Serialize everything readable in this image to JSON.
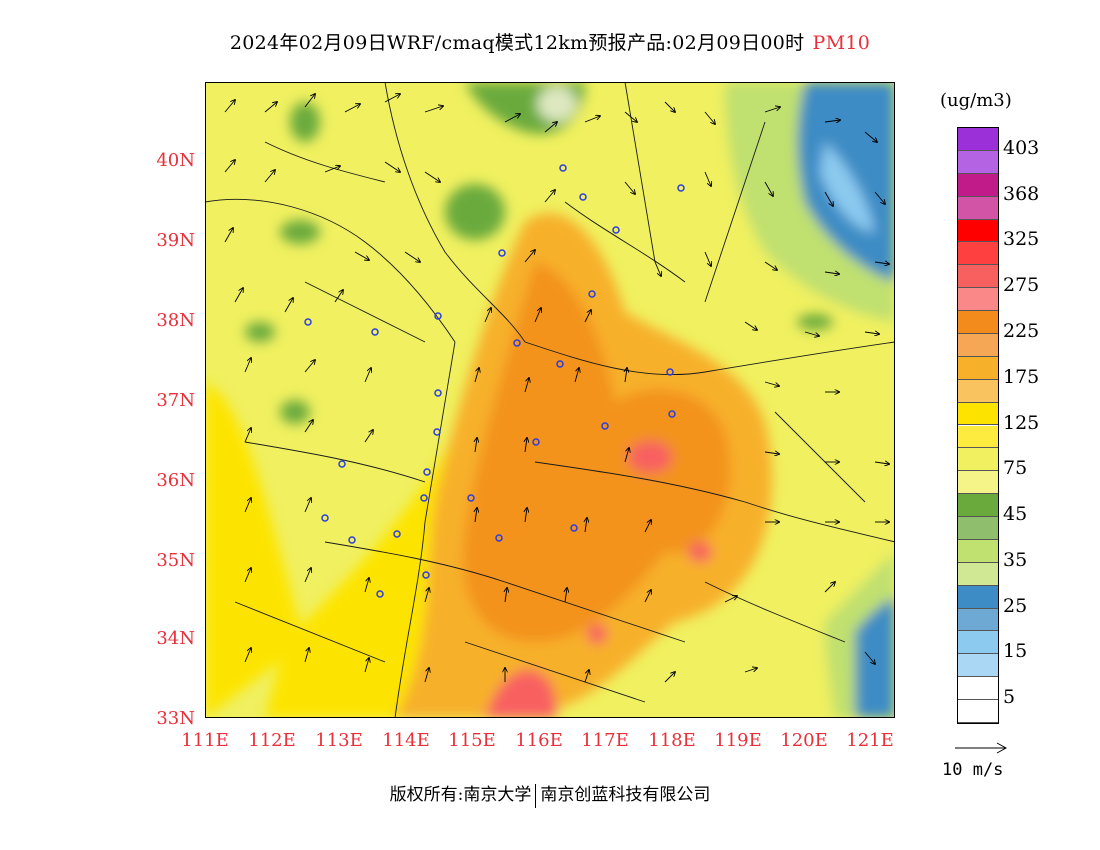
{
  "title": {
    "text": "2024年02月09日WRF/cmaq模式12km预报产品:02月09日00时",
    "variable": "PM10"
  },
  "axes": {
    "lat_labels": [
      "40N",
      "39N",
      "38N",
      "37N",
      "36N",
      "35N",
      "34N",
      "33N"
    ],
    "lon_labels": [
      "111E",
      "112E",
      "113E",
      "114E",
      "115E",
      "116E",
      "117E",
      "118E",
      "119E",
      "120E",
      "121E"
    ],
    "lat_range": [
      33,
      41
    ],
    "lon_range": [
      111,
      121.4
    ]
  },
  "legend": {
    "unit": "(ug/m3)",
    "labels": [
      "403",
      "368",
      "325",
      "275",
      "225",
      "175",
      "125",
      "75",
      "45",
      "35",
      "25",
      "15",
      "5"
    ],
    "colors": [
      "#9b30d9",
      "#c11b8a",
      "#ff0000",
      "#f86060",
      "#f28a1c",
      "#f7b02a",
      "#fde400",
      "#f0f060",
      "#6aaa3c",
      "#c0e070",
      "#3d8cc5",
      "#8ccaf0",
      "#ffffff"
    ]
  },
  "wind_reference": {
    "label": "10 m/s"
  },
  "footer": {
    "left": "版权所有:南京大学",
    "right": "南京创蓝科技有限公司"
  }
}
